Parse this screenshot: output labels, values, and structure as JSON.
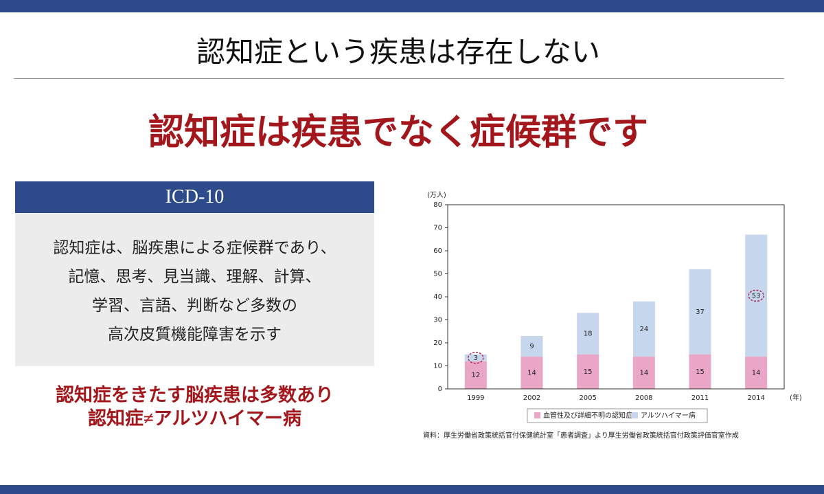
{
  "header": {
    "title": "認知症という疾患は存在しない",
    "subtitle": "認知症は疾患でなく症候群です"
  },
  "box": {
    "title": "ICD-10",
    "lines": [
      "認知症は、脳疾患による症候群であり、",
      "記憶、思考、見当識、理解、計算、",
      "学習、言語、判断など多数の",
      "高次皮質機能障害を示す"
    ]
  },
  "notes": [
    "認知症をきたす脳疾患は多数あり",
    "認知症≠アルツハイマー病"
  ],
  "chart_data": {
    "type": "stacked_bar",
    "y_unit": "(万人)",
    "x_unit": "(年)",
    "categories": [
      "1999",
      "2002",
      "2005",
      "2008",
      "2011",
      "2014"
    ],
    "series": [
      {
        "name": "血管性及び詳細不明の認知症",
        "color": "#e9a6c6",
        "values": [
          12,
          14,
          15,
          14,
          15,
          14
        ]
      },
      {
        "name": "アルツハイマー病",
        "color": "#c6d6ed",
        "values": [
          3,
          9,
          18,
          24,
          37,
          53
        ]
      }
    ],
    "ylim": [
      0,
      80
    ],
    "yticks": [
      0,
      10,
      20,
      30,
      40,
      50,
      60,
      70,
      80
    ],
    "source": "資料：厚生労働省政策統括官付保健統計室「患者調査」より厚生労働省政策統括官付政策評価官室作成"
  }
}
